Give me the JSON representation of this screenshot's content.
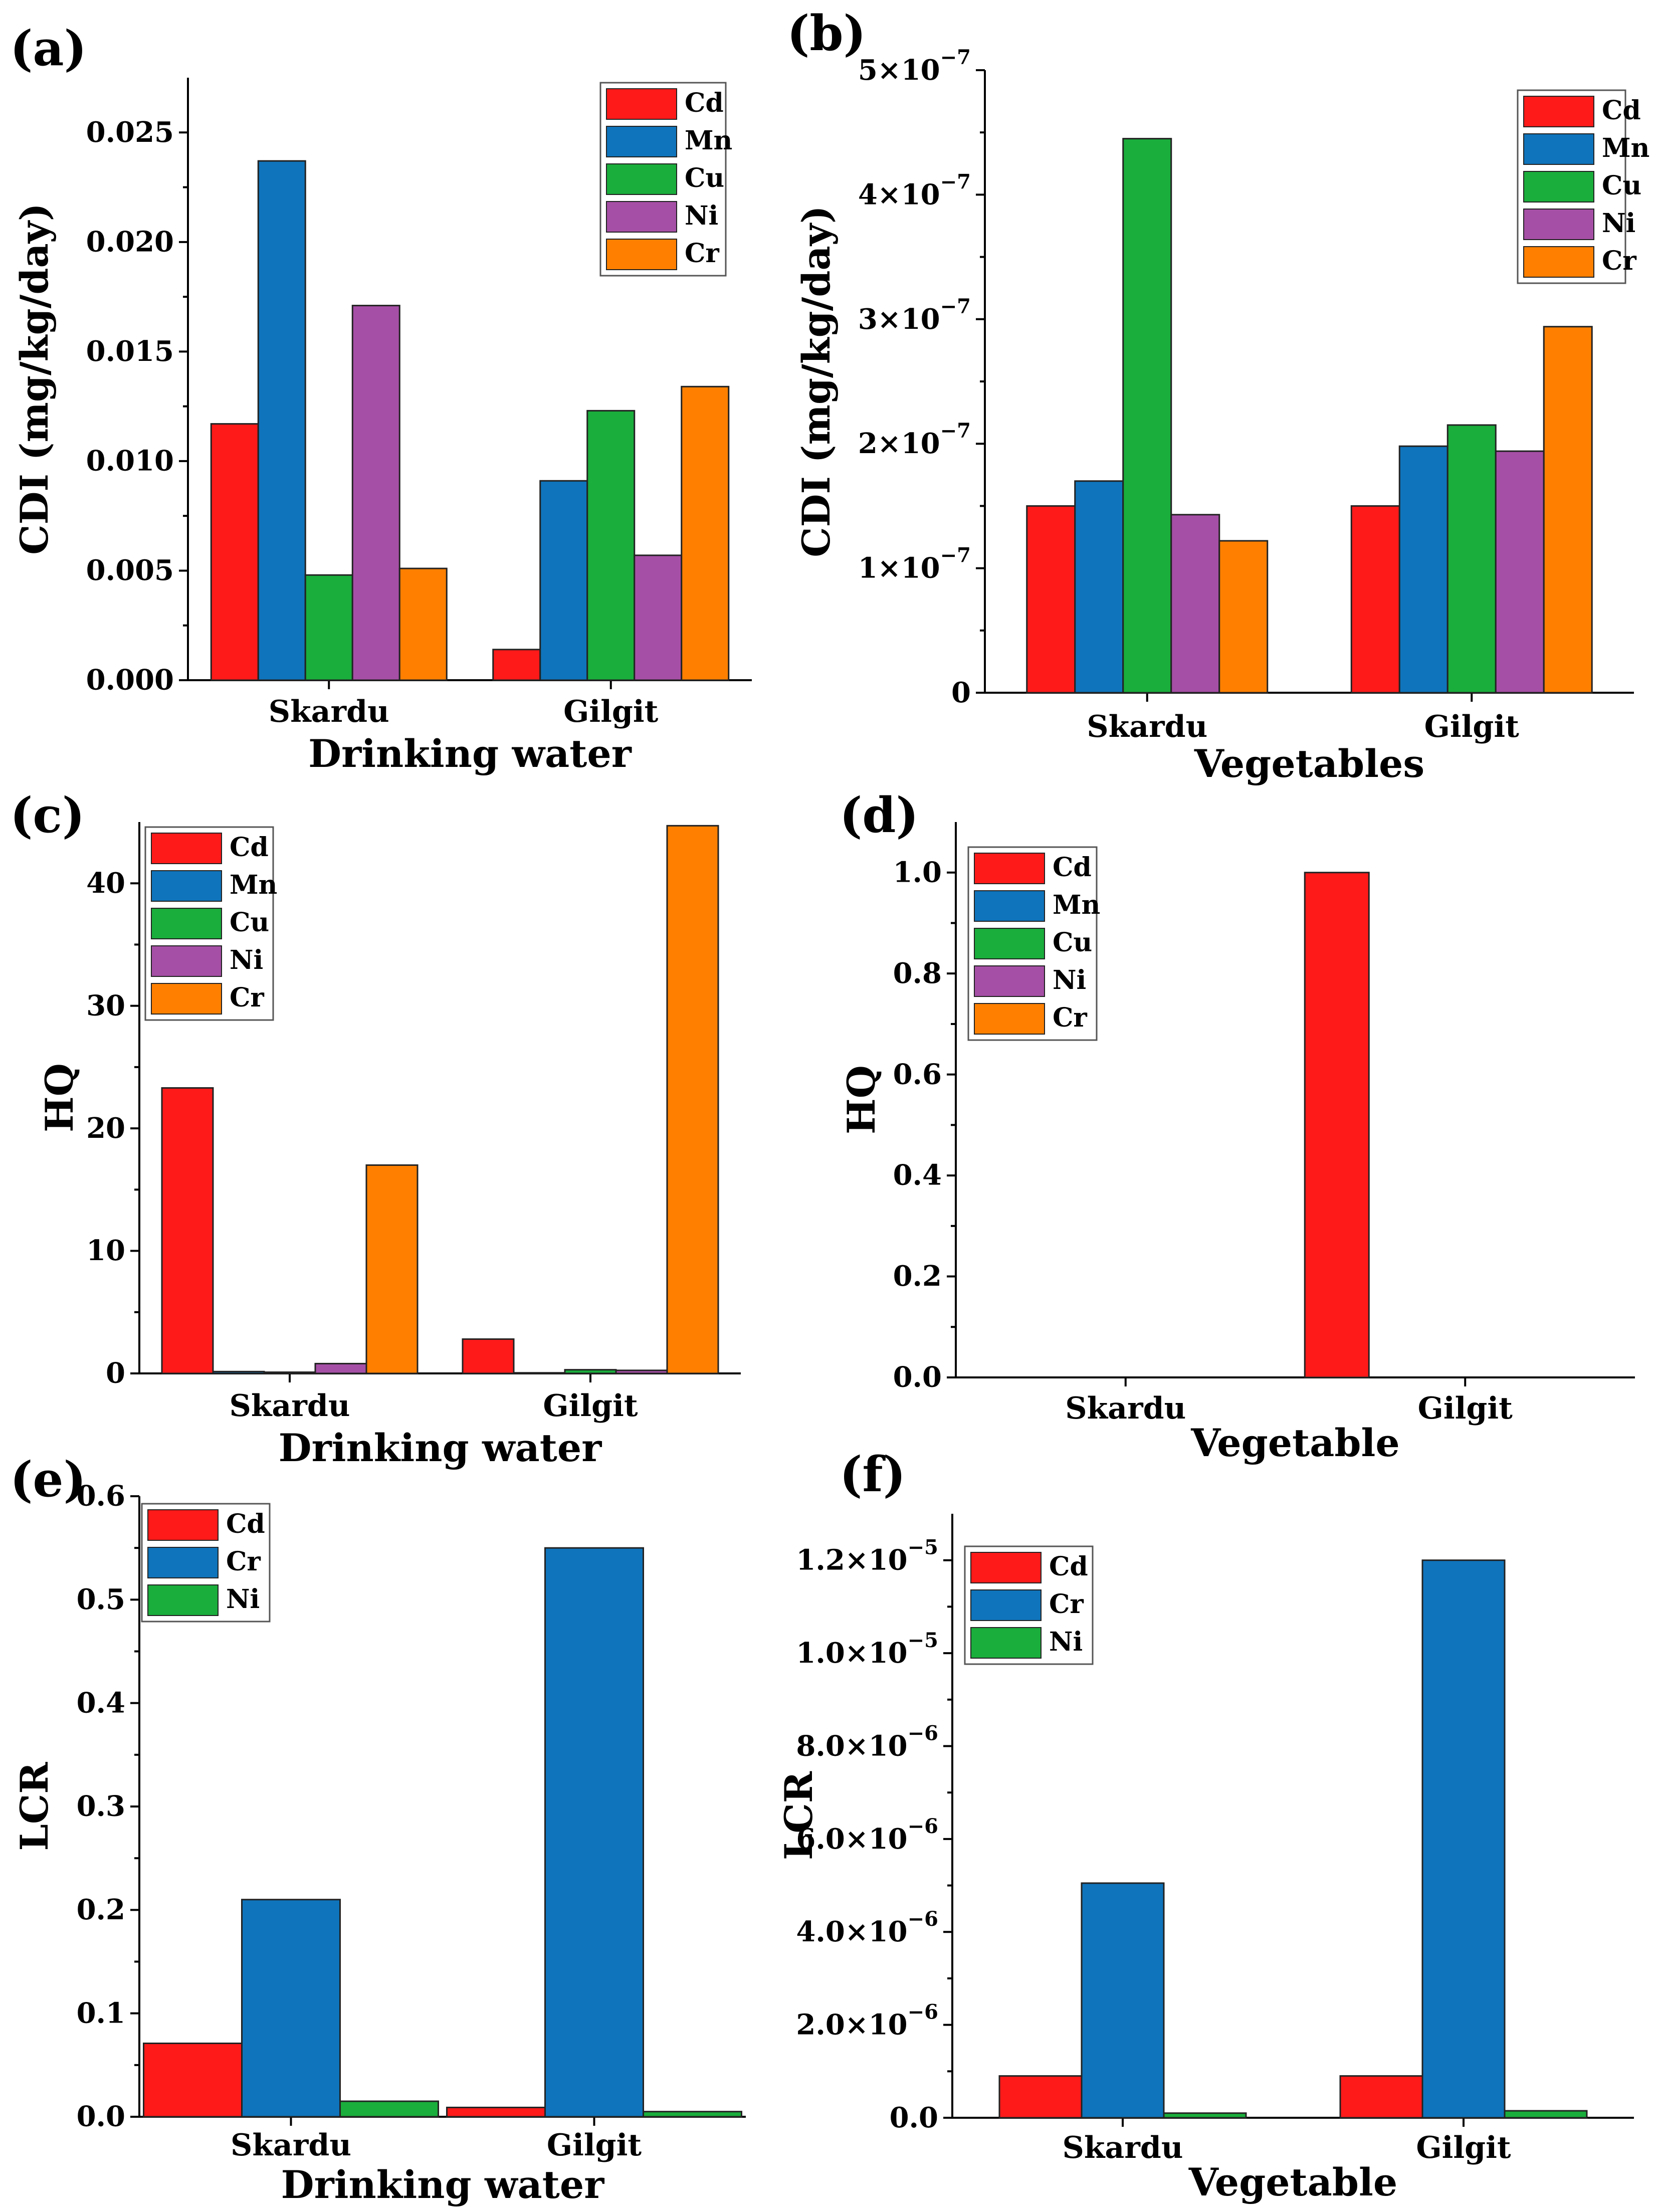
{
  "chart_data": [
    {
      "panel": "(a)",
      "type": "bar",
      "categories": [
        "Skardu",
        "Gilgit"
      ],
      "series": [
        {
          "name": "Cd",
          "color": "#ff1a1a",
          "values": [
            0.0117,
            0.0014
          ]
        },
        {
          "name": "Mn",
          "color": "#0f74bb",
          "values": [
            0.0237,
            0.0091
          ]
        },
        {
          "name": "Cu",
          "color": "#1aae3c",
          "values": [
            0.0048,
            0.0123
          ]
        },
        {
          "name": "Ni",
          "color": "#a64fa6",
          "values": [
            0.0171,
            0.0057
          ]
        },
        {
          "name": "Cr",
          "color": "#ff8000",
          "values": [
            0.0051,
            0.0134
          ]
        }
      ],
      "ylabel": "CDI (mg/kg/day)",
      "xlabel": "Drinking water",
      "ylim": [
        0,
        0.0275
      ],
      "ticks": [
        0,
        0.005,
        0.01,
        0.015,
        0.02,
        0.025
      ],
      "tick_labels": [
        "0.000",
        "0.005",
        "0.010",
        "0.015",
        "0.020",
        "0.025"
      ],
      "legend": "top-right"
    },
    {
      "panel": "(b)",
      "type": "bar",
      "categories": [
        "Skardu",
        "Gilgit"
      ],
      "series": [
        {
          "name": "Cd",
          "color": "#ff1a1a",
          "values": [
            1.5e-07,
            1.5e-07
          ]
        },
        {
          "name": "Mn",
          "color": "#0f74bb",
          "values": [
            1.7e-07,
            1.98e-07
          ]
        },
        {
          "name": "Cu",
          "color": "#1aae3c",
          "values": [
            4.45e-07,
            2.15e-07
          ]
        },
        {
          "name": "Ni",
          "color": "#a64fa6",
          "values": [
            1.43e-07,
            1.94e-07
          ]
        },
        {
          "name": "Cr",
          "color": "#ff8000",
          "values": [
            1.22e-07,
            2.94e-07
          ]
        }
      ],
      "ylabel": "CDI (mg/kg/day)",
      "xlabel": "Vegetables",
      "ylim": [
        0,
        5e-07
      ],
      "ticks": [
        0,
        1e-07,
        2e-07,
        3e-07,
        4e-07,
        5e-07
      ],
      "tick_labels": [
        {
          "mant": "0",
          "exp": ""
        },
        {
          "mant": "1×10",
          "exp": "−7"
        },
        {
          "mant": "2×10",
          "exp": "−7"
        },
        {
          "mant": "3×10",
          "exp": "−7"
        },
        {
          "mant": "4×10",
          "exp": "−7"
        },
        {
          "mant": "5×10",
          "exp": "−7"
        }
      ],
      "legend": "top-right"
    },
    {
      "panel": "(c)",
      "type": "bar",
      "categories": [
        "Skardu",
        "Gilgit"
      ],
      "series": [
        {
          "name": "Cd",
          "color": "#ff1a1a",
          "values": [
            23.3,
            2.8
          ]
        },
        {
          "name": "Mn",
          "color": "#0f74bb",
          "values": [
            0.15,
            0.05
          ]
        },
        {
          "name": "Cu",
          "color": "#1aae3c",
          "values": [
            0.1,
            0.3
          ]
        },
        {
          "name": "Ni",
          "color": "#a64fa6",
          "values": [
            0.8,
            0.25
          ]
        },
        {
          "name": "Cr",
          "color": "#ff8000",
          "values": [
            17.0,
            44.7
          ]
        }
      ],
      "ylabel": "HQ",
      "xlabel": "Drinking water",
      "ylim": [
        0,
        45
      ],
      "ticks": [
        0,
        10,
        20,
        30,
        40
      ],
      "tick_labels": [
        "0",
        "10",
        "20",
        "30",
        "40"
      ],
      "legend": "top-left"
    },
    {
      "panel": "(d)",
      "type": "bar",
      "categories": [
        "Skardu",
        "Gilgit"
      ],
      "series": [
        {
          "name": "Cd",
          "color": "#ff1a1a",
          "values": [
            0,
            1.0
          ]
        },
        {
          "name": "Mn",
          "color": "#0f74bb",
          "values": [
            0,
            0
          ]
        },
        {
          "name": "Cu",
          "color": "#1aae3c",
          "values": [
            0,
            0
          ]
        },
        {
          "name": "Ni",
          "color": "#a64fa6",
          "values": [
            0,
            0
          ]
        },
        {
          "name": "Cr",
          "color": "#ff8000",
          "values": [
            0,
            0
          ]
        }
      ],
      "ylabel": "HQ",
      "xlabel": "Vegetable",
      "ylim": [
        0,
        1.1
      ],
      "ticks": [
        0,
        0.2,
        0.4,
        0.6,
        0.8,
        1.0
      ],
      "tick_labels": [
        "0.0",
        "0.2",
        "0.4",
        "0.6",
        "0.8",
        "1.0"
      ],
      "legend": "top-left"
    },
    {
      "panel": "(e)",
      "type": "bar",
      "categories": [
        "Skardu",
        "Gilgit"
      ],
      "series": [
        {
          "name": "Cd",
          "color": "#ff1a1a",
          "values": [
            0.071,
            0.009
          ]
        },
        {
          "name": "Cr",
          "color": "#0f74bb",
          "values": [
            0.21,
            0.55
          ]
        },
        {
          "name": "Ni",
          "color": "#1aae3c",
          "values": [
            0.015,
            0.005
          ]
        }
      ],
      "ylabel": "LCR",
      "xlabel": "Drinking water",
      "ylim": [
        0,
        0.6
      ],
      "ticks": [
        0,
        0.1,
        0.2,
        0.3,
        0.4,
        0.5,
        0.6
      ],
      "tick_labels": [
        "0.0",
        "0.1",
        "0.2",
        "0.3",
        "0.4",
        "0.5",
        "0.6"
      ],
      "legend": "top-left"
    },
    {
      "panel": "(f)",
      "type": "bar",
      "categories": [
        "Skardu",
        "Gilgit"
      ],
      "series": [
        {
          "name": "Cd",
          "color": "#ff1a1a",
          "values": [
            9e-07,
            9e-07
          ]
        },
        {
          "name": "Cr",
          "color": "#0f74bb",
          "values": [
            5.05e-06,
            1.2e-05
          ]
        },
        {
          "name": "Ni",
          "color": "#1aae3c",
          "values": [
            1e-07,
            1.5e-07
          ]
        }
      ],
      "ylabel": "LCR",
      "xlabel": "Vegetable",
      "ylim": [
        0,
        1.3e-05
      ],
      "ticks": [
        0,
        2e-06,
        4e-06,
        6e-06,
        8e-06,
        1e-05,
        1.2e-05
      ],
      "tick_labels": [
        {
          "mant": "0.0",
          "exp": ""
        },
        {
          "mant": "2.0×10",
          "exp": "−6"
        },
        {
          "mant": "4.0×10",
          "exp": "−6"
        },
        {
          "mant": "6.0×10",
          "exp": "−6"
        },
        {
          "mant": "8.0×10",
          "exp": "−6"
        },
        {
          "mant": "1.0×10",
          "exp": "−5"
        },
        {
          "mant": "1.2×10",
          "exp": "−5"
        }
      ],
      "legend": "top-left"
    }
  ]
}
